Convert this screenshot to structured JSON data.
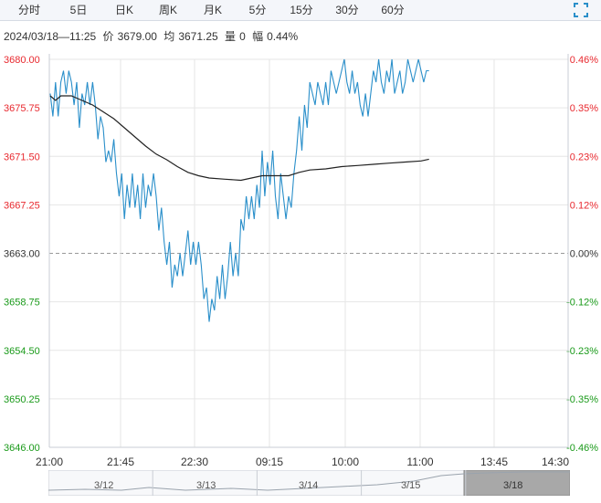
{
  "tabs": [
    {
      "label": "分时",
      "active": true
    },
    {
      "label": "5日",
      "active": false
    },
    {
      "label": "日K",
      "active": false
    },
    {
      "label": "周K",
      "active": false
    },
    {
      "label": "月K",
      "active": false
    },
    {
      "label": "5分",
      "active": false
    },
    {
      "label": "15分",
      "active": false
    },
    {
      "label": "30分",
      "active": false
    },
    {
      "label": "60分",
      "active": false
    }
  ],
  "info": {
    "datetime": "2024/03/18—11:25",
    "price_label": "价",
    "price": "3679.00",
    "avg_label": "均",
    "avg": "3671.25",
    "vol_label": "量",
    "vol": "0",
    "chg_label": "幅",
    "chg": "0.44%"
  },
  "colors": {
    "price_line": "#2a8fca",
    "avg_line": "#222222",
    "up": "#e8292f",
    "down": "#1a9a1a",
    "grid": "#e6e6e6",
    "prev_close_line": "#999999"
  },
  "chart_data": {
    "type": "line",
    "prev_close": 3663.0,
    "ylim": [
      3646.0,
      3680.0
    ],
    "y_ticks_left": [
      "3680.00",
      "3675.75",
      "3671.50",
      "3667.25",
      "3663.00",
      "3658.75",
      "3654.50",
      "3650.25",
      "3646.00"
    ],
    "y_ticks_right": [
      "0.46%",
      "0.35%",
      "0.23%",
      "0.12%",
      "0.00%",
      "-0.12%",
      "-0.23%",
      "-0.35%",
      "-0.46%"
    ],
    "x_ticks": [
      "21:00",
      "21:45",
      "22:30",
      "09:15",
      "10:00",
      "11:00",
      "13:45",
      "14:30"
    ],
    "session_minutes": 420,
    "series": [
      {
        "role": "price",
        "points": [
          [
            0,
            3677
          ],
          [
            1,
            3675
          ],
          [
            2,
            3678
          ],
          [
            3,
            3675
          ],
          [
            4,
            3678
          ],
          [
            5,
            3679
          ],
          [
            6,
            3677
          ],
          [
            7,
            3679
          ],
          [
            8,
            3678
          ],
          [
            9,
            3676
          ],
          [
            10,
            3678
          ],
          [
            11,
            3674
          ],
          [
            12,
            3677
          ],
          [
            13,
            3676
          ],
          [
            14,
            3678
          ],
          [
            15,
            3676
          ],
          [
            16,
            3678
          ],
          [
            17,
            3676
          ],
          [
            18,
            3673
          ],
          [
            19,
            3675
          ],
          [
            20,
            3674
          ],
          [
            21,
            3671
          ],
          [
            22,
            3672
          ],
          [
            23,
            3671
          ],
          [
            24,
            3673
          ],
          [
            25,
            3670
          ],
          [
            26,
            3668
          ],
          [
            27,
            3670
          ],
          [
            28,
            3666
          ],
          [
            29,
            3669
          ],
          [
            30,
            3667
          ],
          [
            31,
            3670
          ],
          [
            32,
            3667
          ],
          [
            33,
            3669
          ],
          [
            34,
            3666
          ],
          [
            35,
            3670
          ],
          [
            36,
            3667
          ],
          [
            37,
            3669
          ],
          [
            38,
            3668
          ],
          [
            39,
            3670
          ],
          [
            40,
            3668
          ],
          [
            41,
            3665
          ],
          [
            42,
            3667
          ],
          [
            43,
            3664
          ],
          [
            44,
            3662
          ],
          [
            45,
            3664
          ],
          [
            46,
            3660
          ],
          [
            47,
            3662
          ],
          [
            48,
            3661
          ],
          [
            49,
            3663
          ],
          [
            50,
            3661
          ],
          [
            51,
            3663
          ],
          [
            52,
            3665
          ],
          [
            53,
            3662
          ],
          [
            54,
            3664
          ],
          [
            55,
            3662
          ],
          [
            56,
            3664
          ],
          [
            57,
            3662
          ],
          [
            58,
            3659
          ],
          [
            59,
            3660
          ],
          [
            60,
            3657
          ],
          [
            61,
            3659
          ],
          [
            62,
            3658
          ],
          [
            63,
            3661
          ],
          [
            64,
            3659
          ],
          [
            65,
            3662
          ],
          [
            66,
            3659
          ],
          [
            67,
            3661
          ],
          [
            68,
            3664
          ],
          [
            69,
            3661
          ],
          [
            70,
            3663
          ],
          [
            71,
            3661
          ],
          [
            72,
            3666
          ],
          [
            73,
            3665
          ],
          [
            74,
            3668
          ],
          [
            75,
            3666
          ],
          [
            76,
            3668
          ],
          [
            77,
            3666
          ],
          [
            78,
            3669
          ],
          [
            79,
            3667
          ],
          [
            80,
            3672
          ],
          [
            81,
            3668
          ],
          [
            82,
            3671
          ],
          [
            83,
            3669
          ],
          [
            84,
            3672
          ],
          [
            85,
            3668
          ],
          [
            86,
            3666
          ],
          [
            87,
            3670
          ],
          [
            88,
            3668
          ],
          [
            89,
            3666
          ],
          [
            90,
            3668
          ],
          [
            91,
            3667
          ],
          [
            92,
            3670
          ],
          [
            93,
            3672
          ],
          [
            94,
            3675
          ],
          [
            95,
            3672
          ],
          [
            96,
            3676
          ],
          [
            97,
            3674
          ],
          [
            98,
            3678
          ],
          [
            99,
            3677
          ],
          [
            100,
            3676
          ],
          [
            101,
            3678
          ],
          [
            102,
            3677
          ],
          [
            103,
            3676
          ],
          [
            104,
            3678
          ],
          [
            105,
            3676
          ],
          [
            106,
            3679
          ],
          [
            107,
            3678
          ],
          [
            108,
            3677
          ],
          [
            109,
            3678
          ],
          [
            110,
            3679
          ],
          [
            111,
            3680
          ],
          [
            112,
            3678
          ],
          [
            113,
            3677
          ],
          [
            114,
            3679
          ],
          [
            115,
            3677
          ],
          [
            116,
            3678
          ],
          [
            117,
            3676
          ],
          [
            118,
            3675
          ],
          [
            119,
            3677
          ],
          [
            120,
            3675
          ],
          [
            121,
            3677
          ],
          [
            122,
            3679
          ],
          [
            123,
            3678
          ],
          [
            124,
            3680
          ],
          [
            125,
            3678
          ],
          [
            126,
            3677
          ],
          [
            127,
            3679
          ],
          [
            128,
            3678
          ],
          [
            129,
            3680
          ],
          [
            130,
            3677
          ],
          [
            131,
            3678
          ],
          [
            132,
            3679
          ],
          [
            133,
            3677
          ],
          [
            134,
            3678
          ],
          [
            135,
            3680
          ],
          [
            136,
            3679
          ],
          [
            137,
            3678
          ],
          [
            138,
            3679
          ],
          [
            139,
            3680
          ],
          [
            140,
            3679
          ],
          [
            141,
            3678
          ],
          [
            142,
            3679
          ],
          [
            143,
            3679
          ]
        ]
      },
      {
        "role": "average",
        "points": [
          [
            0,
            3676.8
          ],
          [
            2,
            3676.4
          ],
          [
            4,
            3676.8
          ],
          [
            8,
            3676.8
          ],
          [
            12,
            3676.4
          ],
          [
            16,
            3676.0
          ],
          [
            20,
            3675.4
          ],
          [
            24,
            3674.8
          ],
          [
            28,
            3674.0
          ],
          [
            32,
            3673.2
          ],
          [
            36,
            3672.4
          ],
          [
            40,
            3671.7
          ],
          [
            44,
            3671.2
          ],
          [
            48,
            3670.6
          ],
          [
            52,
            3670.1
          ],
          [
            56,
            3669.8
          ],
          [
            60,
            3669.6
          ],
          [
            66,
            3669.5
          ],
          [
            72,
            3669.4
          ],
          [
            76,
            3669.6
          ],
          [
            80,
            3669.8
          ],
          [
            86,
            3669.8
          ],
          [
            90,
            3669.8
          ],
          [
            94,
            3670.1
          ],
          [
            98,
            3670.3
          ],
          [
            104,
            3670.4
          ],
          [
            110,
            3670.6
          ],
          [
            116,
            3670.7
          ],
          [
            122,
            3670.8
          ],
          [
            128,
            3670.9
          ],
          [
            134,
            3671.0
          ],
          [
            140,
            3671.1
          ],
          [
            143,
            3671.25
          ]
        ]
      }
    ]
  },
  "navigator": {
    "dates": [
      "3/12",
      "3/13",
      "3/14",
      "3/15",
      "3/18"
    ],
    "selected": "3/18"
  }
}
